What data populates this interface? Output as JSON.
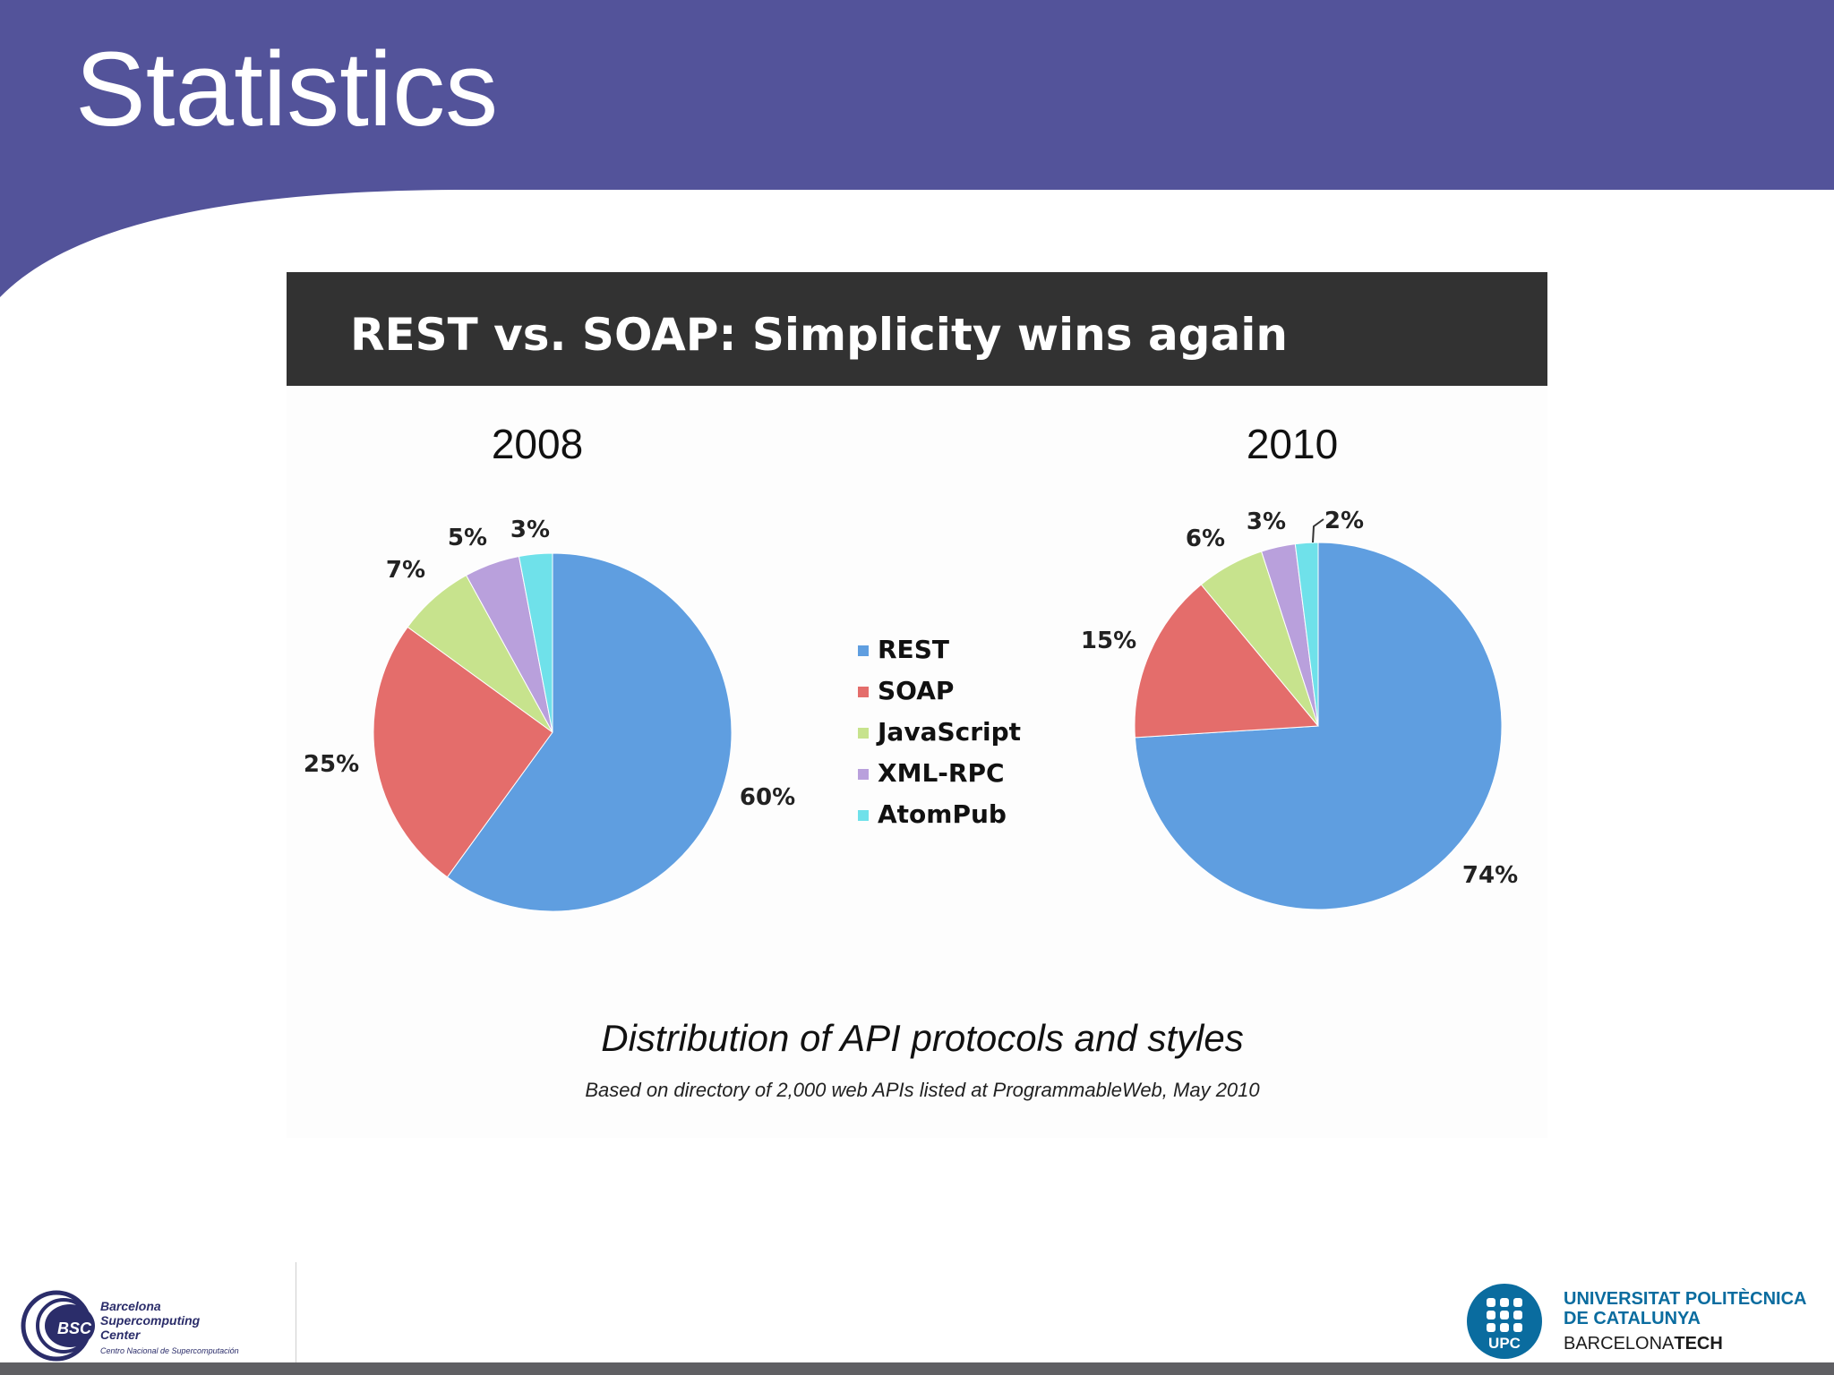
{
  "slide": {
    "title": "Statistics"
  },
  "banner": {
    "title": "REST vs. SOAP: Simplicity wins again"
  },
  "chart_data": [
    {
      "type": "pie",
      "title": "2008",
      "categories": [
        "REST",
        "SOAP",
        "JavaScript",
        "XML-RPC",
        "AtomPub"
      ],
      "values": [
        60,
        25,
        7,
        5,
        3
      ],
      "labels": [
        "60%",
        "25%",
        "7%",
        "5%",
        "3%"
      ],
      "colors": [
        "#5f9ee0",
        "#e46d6b",
        "#c7e38d",
        "#b9a0dc",
        "#6fe1ea"
      ]
    },
    {
      "type": "pie",
      "title": "2010",
      "categories": [
        "REST",
        "SOAP",
        "JavaScript",
        "XML-RPC",
        "AtomPub"
      ],
      "values": [
        74,
        15,
        6,
        3,
        2
      ],
      "labels": [
        "74%",
        "15%",
        "6%",
        "3%",
        "2%"
      ],
      "colors": [
        "#5f9ee0",
        "#e46d6b",
        "#c7e38d",
        "#b9a0dc",
        "#6fe1ea"
      ]
    }
  ],
  "legend": {
    "items": [
      {
        "label": "REST",
        "color": "#5f9ee0"
      },
      {
        "label": "SOAP",
        "color": "#e46d6b"
      },
      {
        "label": "JavaScript",
        "color": "#c7e38d"
      },
      {
        "label": "XML-RPC",
        "color": "#b9a0dc"
      },
      {
        "label": "AtomPub",
        "color": "#6fe1ea"
      }
    ],
    "placement": "center"
  },
  "caption": {
    "main": "Distribution of API protocols and styles",
    "source": "Based on directory of 2,000 web APIs listed at ProgrammableWeb, May 2010"
  },
  "footer": {
    "left_logo": {
      "name": "BSC",
      "line1": "Barcelona",
      "line2": "Supercomputing",
      "line3": "Center",
      "line4": "Centro Nacional de Supercomputación"
    },
    "right_logo": {
      "mark": "UPC",
      "line1": "UNIVERSITAT POLITÈCNICA",
      "line2": "DE CATALUNYA",
      "line3_prefix": "BARCELONA",
      "line3_bold": "TECH"
    }
  },
  "colors": {
    "header": "#53539a",
    "banner": "#323232",
    "upc_blue": "#0a6c9f",
    "footer_bar": "#5f5f63"
  }
}
